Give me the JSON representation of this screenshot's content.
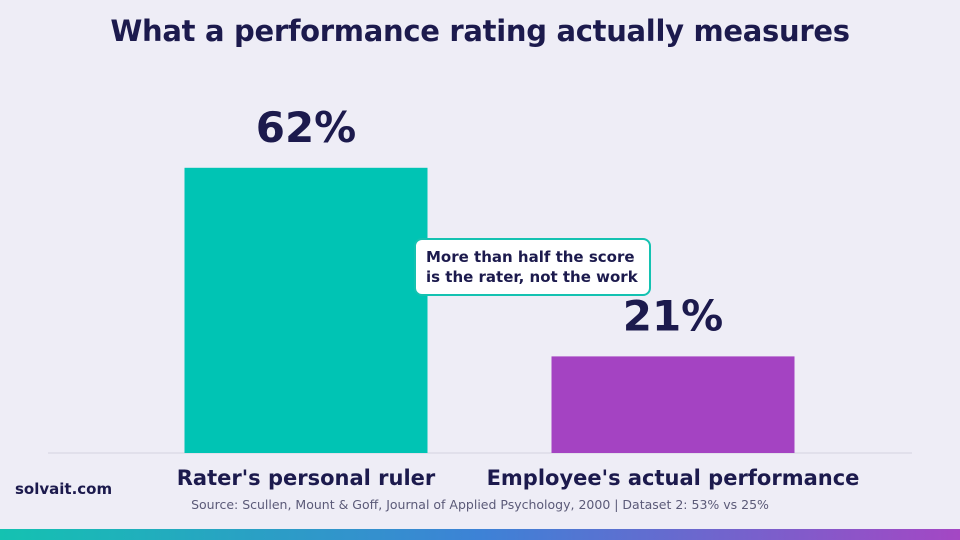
{
  "title": "What a performance rating actually measures",
  "callout": {
    "line1": "More than half the score",
    "line2": "is the rater, not the work"
  },
  "brand": "solvait.com",
  "source": "Source: Scullen, Mount & Goff, Journal of Applied Psychology, 2000  |  Dataset 2: 53% vs 25%",
  "colors": {
    "background": "#eeedf6",
    "title": "#1c1a4d",
    "teal": "#00c4b4",
    "purple": "#a443c2"
  },
  "chart_data": {
    "type": "bar",
    "title": "What a performance rating actually measures",
    "categories": [
      "Rater's personal ruler",
      "Employee's actual performance"
    ],
    "values": [
      62,
      21
    ],
    "value_labels": [
      "62%",
      "21%"
    ],
    "colors": [
      "#00c4b4",
      "#a443c2"
    ],
    "ylim": [
      0,
      100
    ],
    "unit": "%",
    "grid": false,
    "legend": "none"
  }
}
